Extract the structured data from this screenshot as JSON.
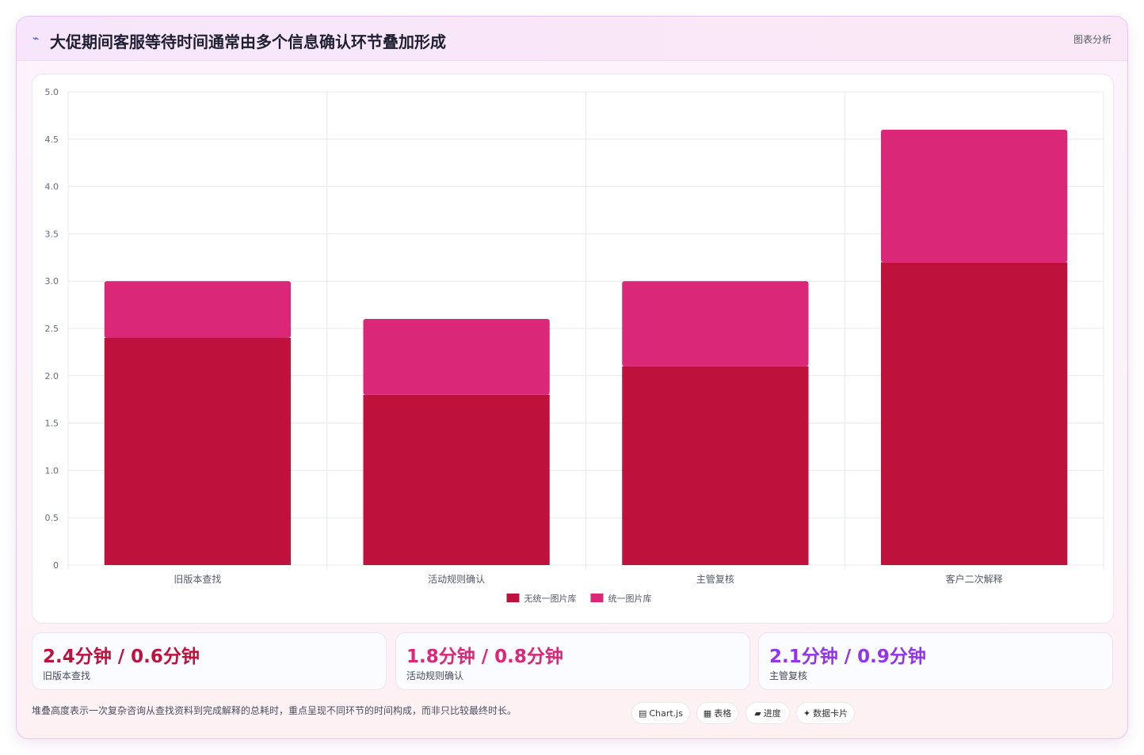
{
  "header": {
    "icon": "sparkline-icon",
    "title": "大促期间客服等待时间通常由多个信息确认环节叠加形成",
    "link_label": "图表分析"
  },
  "chart_data": {
    "type": "bar",
    "stacked": true,
    "categories": [
      "旧版本查找",
      "活动规则确认",
      "主管复核",
      "客户二次解释"
    ],
    "series": [
      {
        "name": "无统一图片库",
        "color": "#be123c",
        "values": [
          2.4,
          1.8,
          2.1,
          3.2
        ]
      },
      {
        "name": "统一图片库",
        "color": "#db2777",
        "values": [
          0.6,
          0.8,
          0.9,
          1.4
        ]
      }
    ],
    "ylim": [
      0,
      5
    ],
    "yticks": [
      "0",
      "0.5",
      "1.0",
      "1.5",
      "2.0",
      "2.5",
      "3.0",
      "3.5",
      "4.0",
      "4.5",
      "5.0"
    ],
    "grid": true,
    "legend_position": "bottom",
    "xlabel": "",
    "ylabel": ""
  },
  "stats": [
    {
      "value": "2.4分钟 / 0.6分钟",
      "label": "旧版本查找",
      "color": "#be123c"
    },
    {
      "value": "1.8分钟 / 0.8分钟",
      "label": "活动规则确认",
      "color": "#db2777"
    },
    {
      "value": "2.1分钟 / 0.9分钟",
      "label": "主管复核",
      "color": "#9333ea"
    }
  ],
  "footer": {
    "note": "堆叠高度表示一次复杂咨询从查找资料到完成解释的总耗时，重点呈现不同环节的时间构成，而非只比较最终时长。",
    "chips": [
      {
        "icon": "chart-icon",
        "glyph": "▤",
        "label": "Chart.js"
      },
      {
        "icon": "table-icon",
        "glyph": "▦",
        "label": "表格"
      },
      {
        "icon": "progress-icon",
        "glyph": "▰",
        "label": "进度"
      },
      {
        "icon": "data-card-icon",
        "glyph": "✦",
        "label": "数据卡片"
      }
    ]
  }
}
